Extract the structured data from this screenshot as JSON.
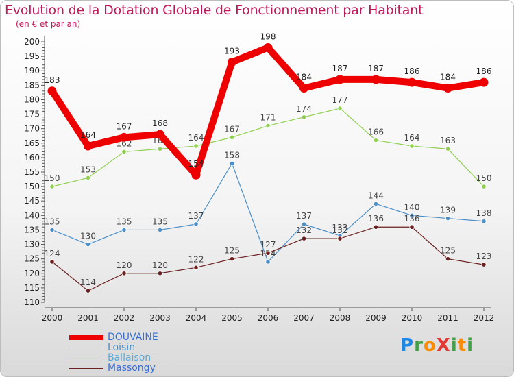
{
  "header": {
    "title": "Evolution de la Dotation Globale de Fonctionnement par Habitant",
    "subtitle": "(en € et par an)"
  },
  "logo": {
    "text": "ProXiti",
    "letters": [
      "P",
      "r",
      "o",
      "X",
      "i",
      "t",
      "i"
    ],
    "colors": [
      "#1e88e5",
      "#43a047",
      "#fb8c00",
      "#e53935",
      "#43a047",
      "#fb8c00",
      "#43a047"
    ]
  },
  "chart_data": {
    "type": "line",
    "title": "Evolution de la Dotation Globale de Fonctionnement par Habitant",
    "subtitle": "(en € et par an)",
    "xlabel": "",
    "ylabel": "",
    "categories": [
      "2000",
      "2001",
      "2002",
      "2003",
      "2004",
      "2005",
      "2006",
      "2007",
      "2008",
      "2009",
      "2010",
      "2011",
      "2012"
    ],
    "ylim": [
      110,
      200
    ],
    "yticks": [
      110,
      115,
      120,
      125,
      130,
      135,
      140,
      145,
      150,
      155,
      160,
      165,
      170,
      175,
      180,
      185,
      190,
      195,
      200
    ],
    "grid": false,
    "legend_position": "bottom-left",
    "series": [
      {
        "name": "DOUVAINE",
        "color": "#ee0000",
        "labelColor": "#222222",
        "emphasis": "thick",
        "values": [
          183,
          164,
          167,
          168,
          154,
          193,
          198,
          184,
          187,
          187,
          186,
          184,
          186
        ]
      },
      {
        "name": "Loisin",
        "color": "#4a8fc9",
        "labelColor": "#444444",
        "emphasis": "thin",
        "values": [
          135,
          130,
          135,
          135,
          137,
          158,
          124,
          137,
          133,
          144,
          140,
          139,
          138
        ]
      },
      {
        "name": "Ballaison",
        "color": "#8fd14f",
        "labelColor": "#444444",
        "emphasis": "thin",
        "values": [
          150,
          153,
          162,
          163,
          164,
          167,
          171,
          174,
          177,
          166,
          164,
          163,
          150
        ]
      },
      {
        "name": "Massongy",
        "color": "#6b1f1f",
        "labelColor": "#444444",
        "emphasis": "thin",
        "values": [
          124,
          114,
          120,
          120,
          122,
          125,
          127,
          132,
          132,
          136,
          136,
          125,
          123
        ]
      }
    ]
  }
}
